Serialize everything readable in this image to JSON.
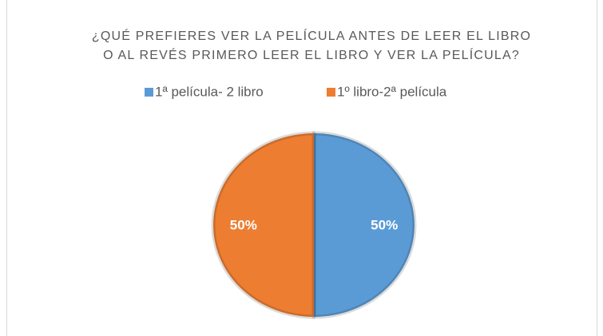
{
  "chart_data": {
    "type": "pie",
    "title": [
      "¿QUÉ PREFIERES VER LA PELÍCULA ANTES DE LEER EL LIBRO",
      "O AL REVÉS PRIMERO LEER EL LIBRO Y VER LA PELÍCULA?"
    ],
    "categories": [
      "1ª película- 2 libro",
      "1º libro-2ª película"
    ],
    "values": [
      50,
      50
    ],
    "value_labels": [
      "50%",
      "50%"
    ],
    "colors": [
      "#5b9bd5",
      "#ed7d31"
    ],
    "legend": "top"
  }
}
